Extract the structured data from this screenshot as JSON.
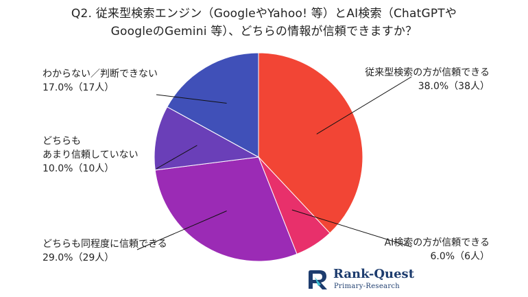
{
  "title": {
    "line1": "Q2. 従来型検索エンジン（GoogleやYahoo! 等）とAI検索（ChatGPTや",
    "line2": "GoogleのGemini 等）、どちらの情報が信頼できますか？"
  },
  "chart_data": {
    "type": "pie",
    "start_angle_deg": 0,
    "direction": "clockwise",
    "slices": [
      {
        "label": "従来型検索の方が信頼できる",
        "value": 38.0,
        "pct_text": "38.0%（38人）",
        "color": "#f24535"
      },
      {
        "label": "AI検索の方が信頼できる",
        "value": 6.0,
        "pct_text": "6.0%（6人）",
        "color": "#e8306b"
      },
      {
        "label": "どちらも同程度に信頼できる",
        "value": 29.0,
        "pct_text": "29.0%（29人）",
        "color": "#9b2bb5"
      },
      {
        "label": "どちらも\nあまり信頼していない",
        "value": 10.0,
        "pct_text": "10.0%（10人）",
        "color": "#6a3fb8"
      },
      {
        "label": "わからない／判断できない",
        "value": 17.0,
        "pct_text": "17.0%（17人）",
        "color": "#4050b8"
      }
    ]
  },
  "logo": {
    "name": "Rank-Quest",
    "sub": "Primary-Research"
  }
}
